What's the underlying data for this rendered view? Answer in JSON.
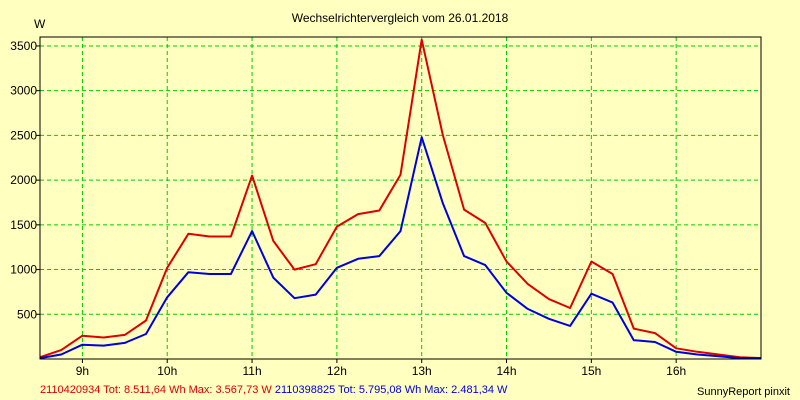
{
  "chart_data": {
    "type": "line",
    "title": "Wechselrichtervergleich vom 26.01.2018",
    "ylabel": "W",
    "xlabel": "",
    "ylim": [
      0,
      3600
    ],
    "xlim": [
      8.5,
      17.0
    ],
    "yticks": [
      500,
      1000,
      1500,
      2000,
      2500,
      3000,
      3500
    ],
    "xticks": [
      {
        "value": 9,
        "label": "9h"
      },
      {
        "value": 10,
        "label": "10h"
      },
      {
        "value": 11,
        "label": "11h"
      },
      {
        "value": 12,
        "label": "12h"
      },
      {
        "value": 13,
        "label": "13h"
      },
      {
        "value": 14,
        "label": "14h"
      },
      {
        "value": 15,
        "label": "15h"
      },
      {
        "value": 16,
        "label": "16h"
      }
    ],
    "grid": true,
    "x": [
      8.5,
      8.75,
      9.0,
      9.25,
      9.5,
      9.75,
      10.0,
      10.25,
      10.5,
      10.75,
      11.0,
      11.25,
      11.5,
      11.75,
      12.0,
      12.25,
      12.5,
      12.75,
      13.0,
      13.25,
      13.5,
      13.75,
      14.0,
      14.25,
      14.5,
      14.75,
      15.0,
      15.25,
      15.5,
      15.75,
      16.0,
      16.25,
      16.5,
      16.75,
      17.0
    ],
    "series": [
      {
        "color": "#dd0000",
        "values": [
          20,
          100,
          260,
          240,
          270,
          430,
          1020,
          1400,
          1370,
          1370,
          2050,
          1320,
          1000,
          1060,
          1480,
          1620,
          1660,
          2060,
          3570,
          2500,
          1670,
          1520,
          1090,
          840,
          670,
          570,
          1090,
          950,
          340,
          290,
          120,
          80,
          50,
          20,
          10
        ]
      },
      {
        "color": "#0000dd",
        "values": [
          10,
          50,
          160,
          150,
          180,
          280,
          690,
          970,
          950,
          950,
          1430,
          910,
          680,
          720,
          1020,
          1120,
          1150,
          1430,
          2480,
          1740,
          1150,
          1050,
          740,
          560,
          450,
          370,
          730,
          630,
          210,
          190,
          80,
          50,
          30,
          10,
          10
        ]
      }
    ]
  },
  "footer": {
    "series1_text": "2110420934 Tot: 8.511,64 Wh Max: 3.567,73 W",
    "series2_text": "2110398825 Tot: 5.795,08 Wh Max: 2.481,34 W",
    "series1_color": "#dd0000",
    "series2_color": "#0000dd"
  },
  "credit": "SunnyReport pinxit"
}
